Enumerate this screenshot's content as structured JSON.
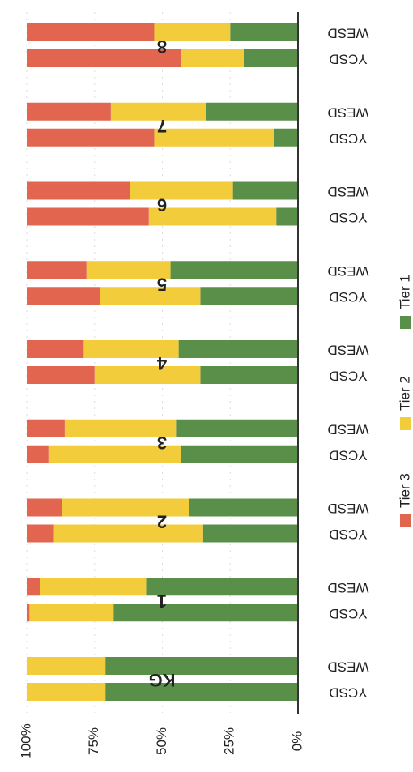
{
  "chart_data": {
    "type": "bar",
    "orientation": "horizontal",
    "stacked": true,
    "group_labels": [
      "KG",
      "1",
      "2",
      "3",
      "4",
      "5",
      "6",
      "7",
      "8"
    ],
    "categories": [
      "YCSD",
      "WESD",
      "YCSD",
      "WESD",
      "YCSD",
      "WESD",
      "YCSD",
      "WESD",
      "YCSD",
      "WESD",
      "YCSD",
      "WESD",
      "YCSD",
      "WESD",
      "YCSD",
      "WESD",
      "YCSD",
      "WESD"
    ],
    "series": [
      {
        "name": "Tier 1",
        "color": "#5a8f4a",
        "values": [
          71,
          71,
          68,
          56,
          35,
          40,
          43,
          45,
          36,
          44,
          36,
          47,
          8,
          24,
          9,
          34,
          20,
          25
        ]
      },
      {
        "name": "Tier 2",
        "color": "#f2cc3a",
        "values": [
          29,
          29,
          31,
          39,
          55,
          47,
          49,
          41,
          39,
          35,
          37,
          31,
          47,
          38,
          44,
          35,
          23,
          28
        ]
      },
      {
        "name": "Tier 3",
        "color": "#e2664f",
        "values": [
          0,
          0,
          1,
          5,
          10,
          13,
          8,
          14,
          25,
          21,
          27,
          22,
          45,
          38,
          47,
          31,
          57,
          47
        ]
      }
    ],
    "xlim": [
      0,
      100
    ],
    "xticks": [
      {
        "value": 100,
        "label": "100%"
      },
      {
        "value": 75,
        "label": "75%"
      },
      {
        "value": 50,
        "label": "50%"
      },
      {
        "value": 25,
        "label": "25%"
      },
      {
        "value": 0,
        "label": "0%"
      }
    ],
    "grid": true
  }
}
